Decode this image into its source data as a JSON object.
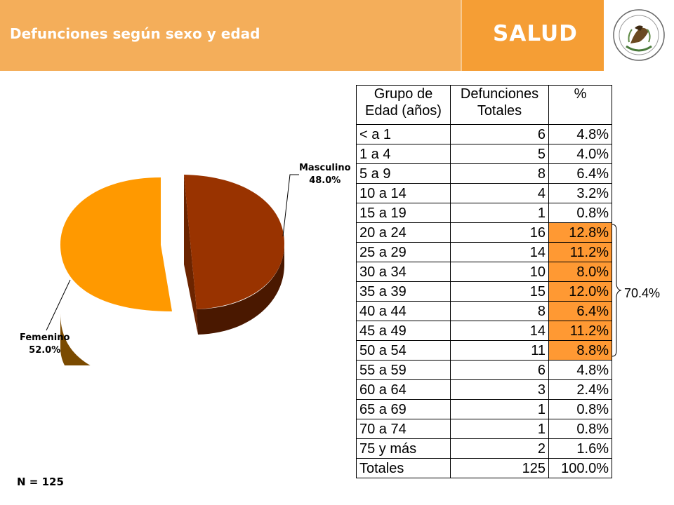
{
  "header": {
    "title": "Defunciones según sexo y edad",
    "brand": "SALUD",
    "seal_text": "ESTADOS UNIDOS MEXICANOS",
    "colors": {
      "bar": "#f4ae5a",
      "brand_box": "#f59e35"
    }
  },
  "chart_data": [
    {
      "type": "pie",
      "title": "",
      "slices": [
        {
          "label": "Masculino",
          "value": 48.0,
          "value_label": "48.0%",
          "color": "#993300"
        },
        {
          "label": "Femenino",
          "value": 52.0,
          "value_label": "52.0%",
          "color": "#ff9900"
        }
      ],
      "style": "3d-exploded"
    },
    {
      "type": "table",
      "columns": [
        "Grupo de Edad (años)",
        "Defunciones Totales",
        "%"
      ],
      "rows": [
        [
          "< a 1",
          "6",
          "4.8%"
        ],
        [
          "1 a 4",
          "5",
          "4.0%"
        ],
        [
          "5 a 9",
          "8",
          "6.4%"
        ],
        [
          "10 a 14",
          "4",
          "3.2%"
        ],
        [
          "15 a 19",
          "1",
          "0.8%"
        ],
        [
          "20 a 24",
          "16",
          "12.8%"
        ],
        [
          "25 a 29",
          "14",
          "11.2%"
        ],
        [
          "30 a 34",
          "10",
          "8.0%"
        ],
        [
          "35 a 39",
          "15",
          "12.0%"
        ],
        [
          "40 a 44",
          "8",
          "6.4%"
        ],
        [
          "45 a 49",
          "14",
          "11.2%"
        ],
        [
          "50 a 54",
          "11",
          "8.8%"
        ],
        [
          "55 a 59",
          "6",
          "4.8%"
        ],
        [
          "60 a 64",
          "3",
          "2.4%"
        ],
        [
          "65 a 69",
          "1",
          "0.8%"
        ],
        [
          "70 a 74",
          "1",
          "0.8%"
        ],
        [
          "75 y más",
          "2",
          "1.6%"
        ],
        [
          "Totales",
          "125",
          "100.0%"
        ]
      ],
      "highlighted_rows": [
        5,
        6,
        7,
        8,
        9,
        10,
        11
      ],
      "highlight_color": "#ff9933",
      "bracket_label": "70.4%"
    }
  ],
  "footer": {
    "n_label": "N = 125"
  }
}
